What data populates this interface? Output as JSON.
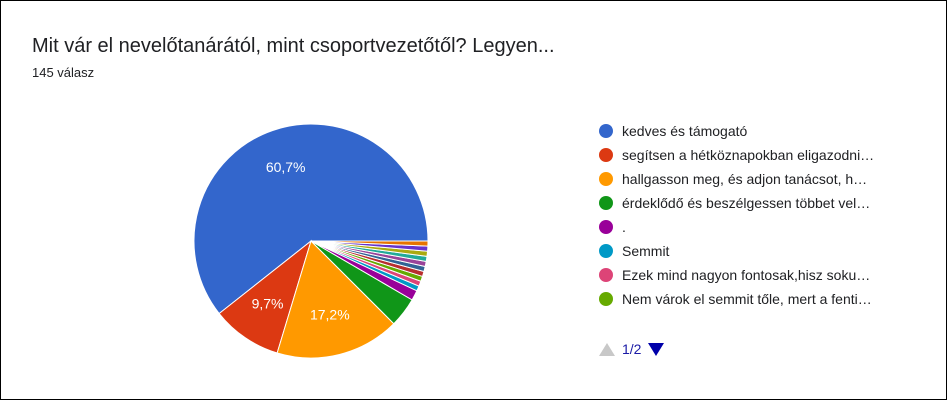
{
  "header": {
    "title": "Mit vár el nevelőtanárától, mint csoportvezetőtől? Legyen...",
    "subtitle": "145 válasz"
  },
  "legend": {
    "pager": "1/2",
    "items": [
      {
        "label": "kedves és támogató",
        "color": "#3366cc"
      },
      {
        "label": "segítsen a hétköznapokban eligazodni…",
        "color": "#dc3912"
      },
      {
        "label": "hallgasson meg, és adjon tanácsot, h…",
        "color": "#ff9900"
      },
      {
        "label": "érdeklődő és beszélgessen többet vel…",
        "color": "#109618"
      },
      {
        "label": ".",
        "color": "#990099"
      },
      {
        "label": "Semmit",
        "color": "#0099c6"
      },
      {
        "label": "Ezek mind nagyon fontosak,hisz soku…",
        "color": "#dd4477"
      },
      {
        "label": "Nem várok el semmit tőle, mert a fenti…",
        "color": "#66aa00"
      }
    ]
  },
  "chart_data": {
    "type": "pie",
    "total_responses": 145,
    "slices": [
      {
        "label": "kedves és támogató",
        "value": 60.7,
        "color": "#3366cc",
        "data_label": "60,7%"
      },
      {
        "label": "segítsen a hétköznapokban eligazodni…",
        "value": 9.7,
        "color": "#dc3912",
        "data_label": "9,7%"
      },
      {
        "label": "hallgasson meg, és adjon tanácsot, h…",
        "value": 17.2,
        "color": "#ff9900",
        "data_label": "17,2%"
      },
      {
        "label": "érdeklődő és beszélgessen többet vel…",
        "value": 4.1,
        "color": "#109618",
        "data_label": ""
      },
      {
        "label": ".",
        "value": 1.4,
        "color": "#990099",
        "data_label": ""
      },
      {
        "label": "Semmit",
        "value": 0.7,
        "color": "#0099c6",
        "data_label": ""
      },
      {
        "label": "Ezek mind nagyon fontosak,hisz soku…",
        "value": 0.7,
        "color": "#dd4477",
        "data_label": ""
      },
      {
        "label": "Nem várok el semmit tőle, mert a fenti…",
        "value": 0.7,
        "color": "#66aa00",
        "data_label": ""
      },
      {
        "label": "",
        "value": 0.7,
        "color": "#b82e2e",
        "data_label": ""
      },
      {
        "label": "",
        "value": 0.7,
        "color": "#316395",
        "data_label": ""
      },
      {
        "label": "",
        "value": 0.7,
        "color": "#994499",
        "data_label": ""
      },
      {
        "label": "",
        "value": 0.7,
        "color": "#22aa99",
        "data_label": ""
      },
      {
        "label": "",
        "value": 0.7,
        "color": "#aaaa11",
        "data_label": ""
      },
      {
        "label": "",
        "value": 0.7,
        "color": "#6633cc",
        "data_label": ""
      },
      {
        "label": "",
        "value": 0.7,
        "color": "#e67300",
        "data_label": ""
      }
    ]
  }
}
